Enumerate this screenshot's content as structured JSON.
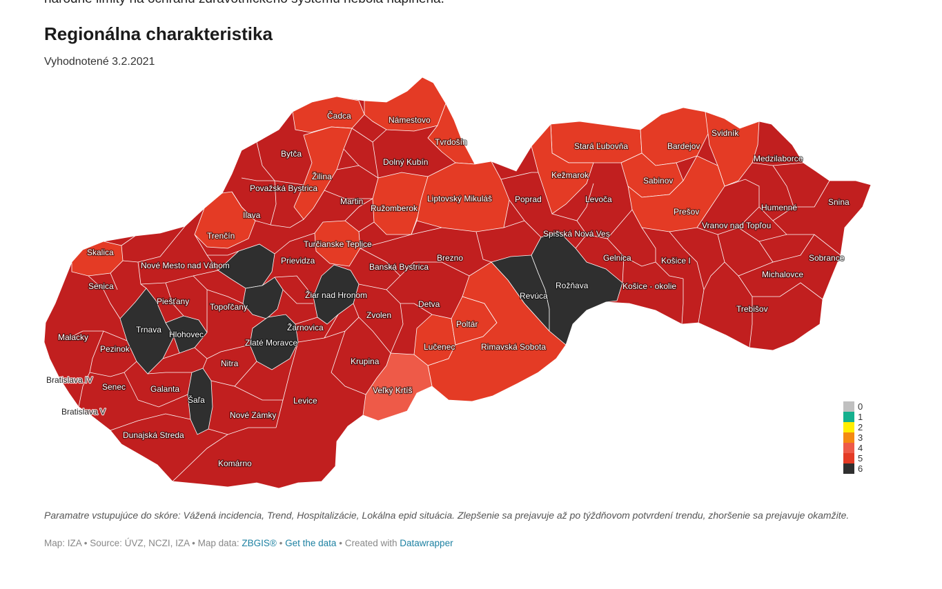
{
  "header": {
    "cut_text": "národné limity na ochranu zdravotníckeho systému nebola naplnená.",
    "title": "Regionálna charakteristika",
    "subtitle": "Vyhodnotené 3.2.2021"
  },
  "colors": {
    "score_0": "#c0c0c0",
    "score_1": "#15b08e",
    "score_2": "#ffee00",
    "score_3": "#f48a11",
    "score_4": "#ee5a48",
    "score_5": "#e43b25",
    "score_6_red": "#c11f1f",
    "score_6_black": "#2f2f2f"
  },
  "legend": [
    {
      "label": "0",
      "color": "#c0c0c0"
    },
    {
      "label": "1",
      "color": "#15b08e"
    },
    {
      "label": "2",
      "color": "#ffee00"
    },
    {
      "label": "3",
      "color": "#f48a11"
    },
    {
      "label": "4",
      "color": "#ee5a48"
    },
    {
      "label": "5",
      "color": "#e43b25"
    },
    {
      "label": "6",
      "color": "#2f2f2f"
    }
  ],
  "districts": {
    "cadca": "Čadca",
    "namestovo": "Námestovo",
    "tvrdosin": "Tvrdošín",
    "bytca": "Bytča",
    "dolny_kubin": "Dolný Kubín",
    "zilina": "Žilina",
    "povazska_bystrica": "Považská Bystrica",
    "martin": "Martin",
    "ruzomberok": "Ružomberok",
    "liptovsky_mikulas": "Liptovský Mikuláš",
    "poprad": "Poprad",
    "stara_lubovna": "Stará Ľubovňa",
    "kezmarok": "Kežmarok",
    "levoca": "Levoča",
    "bardejov": "Bardejov",
    "svidnik": "Svidník",
    "medzilaborce": "Medzilaborce",
    "sabinov": "Sabinov",
    "presov": "Prešov",
    "humenne": "Humenné",
    "snina": "Snina",
    "vranov": "Vranov nad Topľou",
    "ilava": "Ilava",
    "trencin": "Trenčín",
    "skalica": "Skalica",
    "nove_mesto": "Nové Mesto nad Váhom",
    "prievidza": "Prievidza",
    "turcianske_teplice": "Turčianske Teplice",
    "banska_bystrica": "Banská Bystrica",
    "brezno": "Brezno",
    "spisska_nova_ves": "Spišská Nová Ves",
    "gelnica": "Gelnica",
    "kosice_i": "Košice I",
    "kosice_okolie": "Košice - okolie",
    "sobrance": "Sobrance",
    "michalovce": "Michalovce",
    "trebisov": "Trebišov",
    "senica": "Senica",
    "piestany": "Piešťany",
    "topolcany": "Topoľčany",
    "ziar": "Žiar nad Hronom",
    "revuca": "Revúca",
    "roznava": "Rožňava",
    "detva": "Detva",
    "zvolen": "Zvolen",
    "poltar": "Poltár",
    "zarnovica": "Žarnovica",
    "trnava": "Trnava",
    "hlohovec": "Hlohovec",
    "zlate_moravce": "Zlaté Moravce",
    "malacky": "Malacky",
    "pezinok": "Pezinok",
    "lucenec": "Lučenec",
    "rimavska_sobota": "Rimavská Sobota",
    "nitra": "Nitra",
    "krupina": "Krupina",
    "bratislava_iv": "Bratislava IV",
    "senec": "Senec",
    "galanta": "Galanta",
    "velky_krtis": "Veľký Krtíš",
    "sala": "Šaľa",
    "levice": "Levice",
    "bratislava_v": "Bratislava V",
    "nove_zamky": "Nové Zámky",
    "dunajska_streda": "Dunajská Streda",
    "komarno": "Komárno"
  },
  "footer": {
    "notes": "Paramatre vstupujúce do skóre: Vážená incidencia, Trend, Hospitalizácie, Lokálna epid situácia. Zlepšenie sa prejavuje až po týždňovom potvrdení trendu, zhoršenie sa prejavuje okamžite.",
    "map_by": "Map: IZA",
    "source": "Source: ÚVZ, NCZI, IZA",
    "map_data_label": "Map data:",
    "zbgis_link": "ZBGIS®",
    "get_data_link": "Get the data",
    "created_with": "Created with",
    "datawrapper_link": "Datawrapper",
    "separator": "•"
  }
}
